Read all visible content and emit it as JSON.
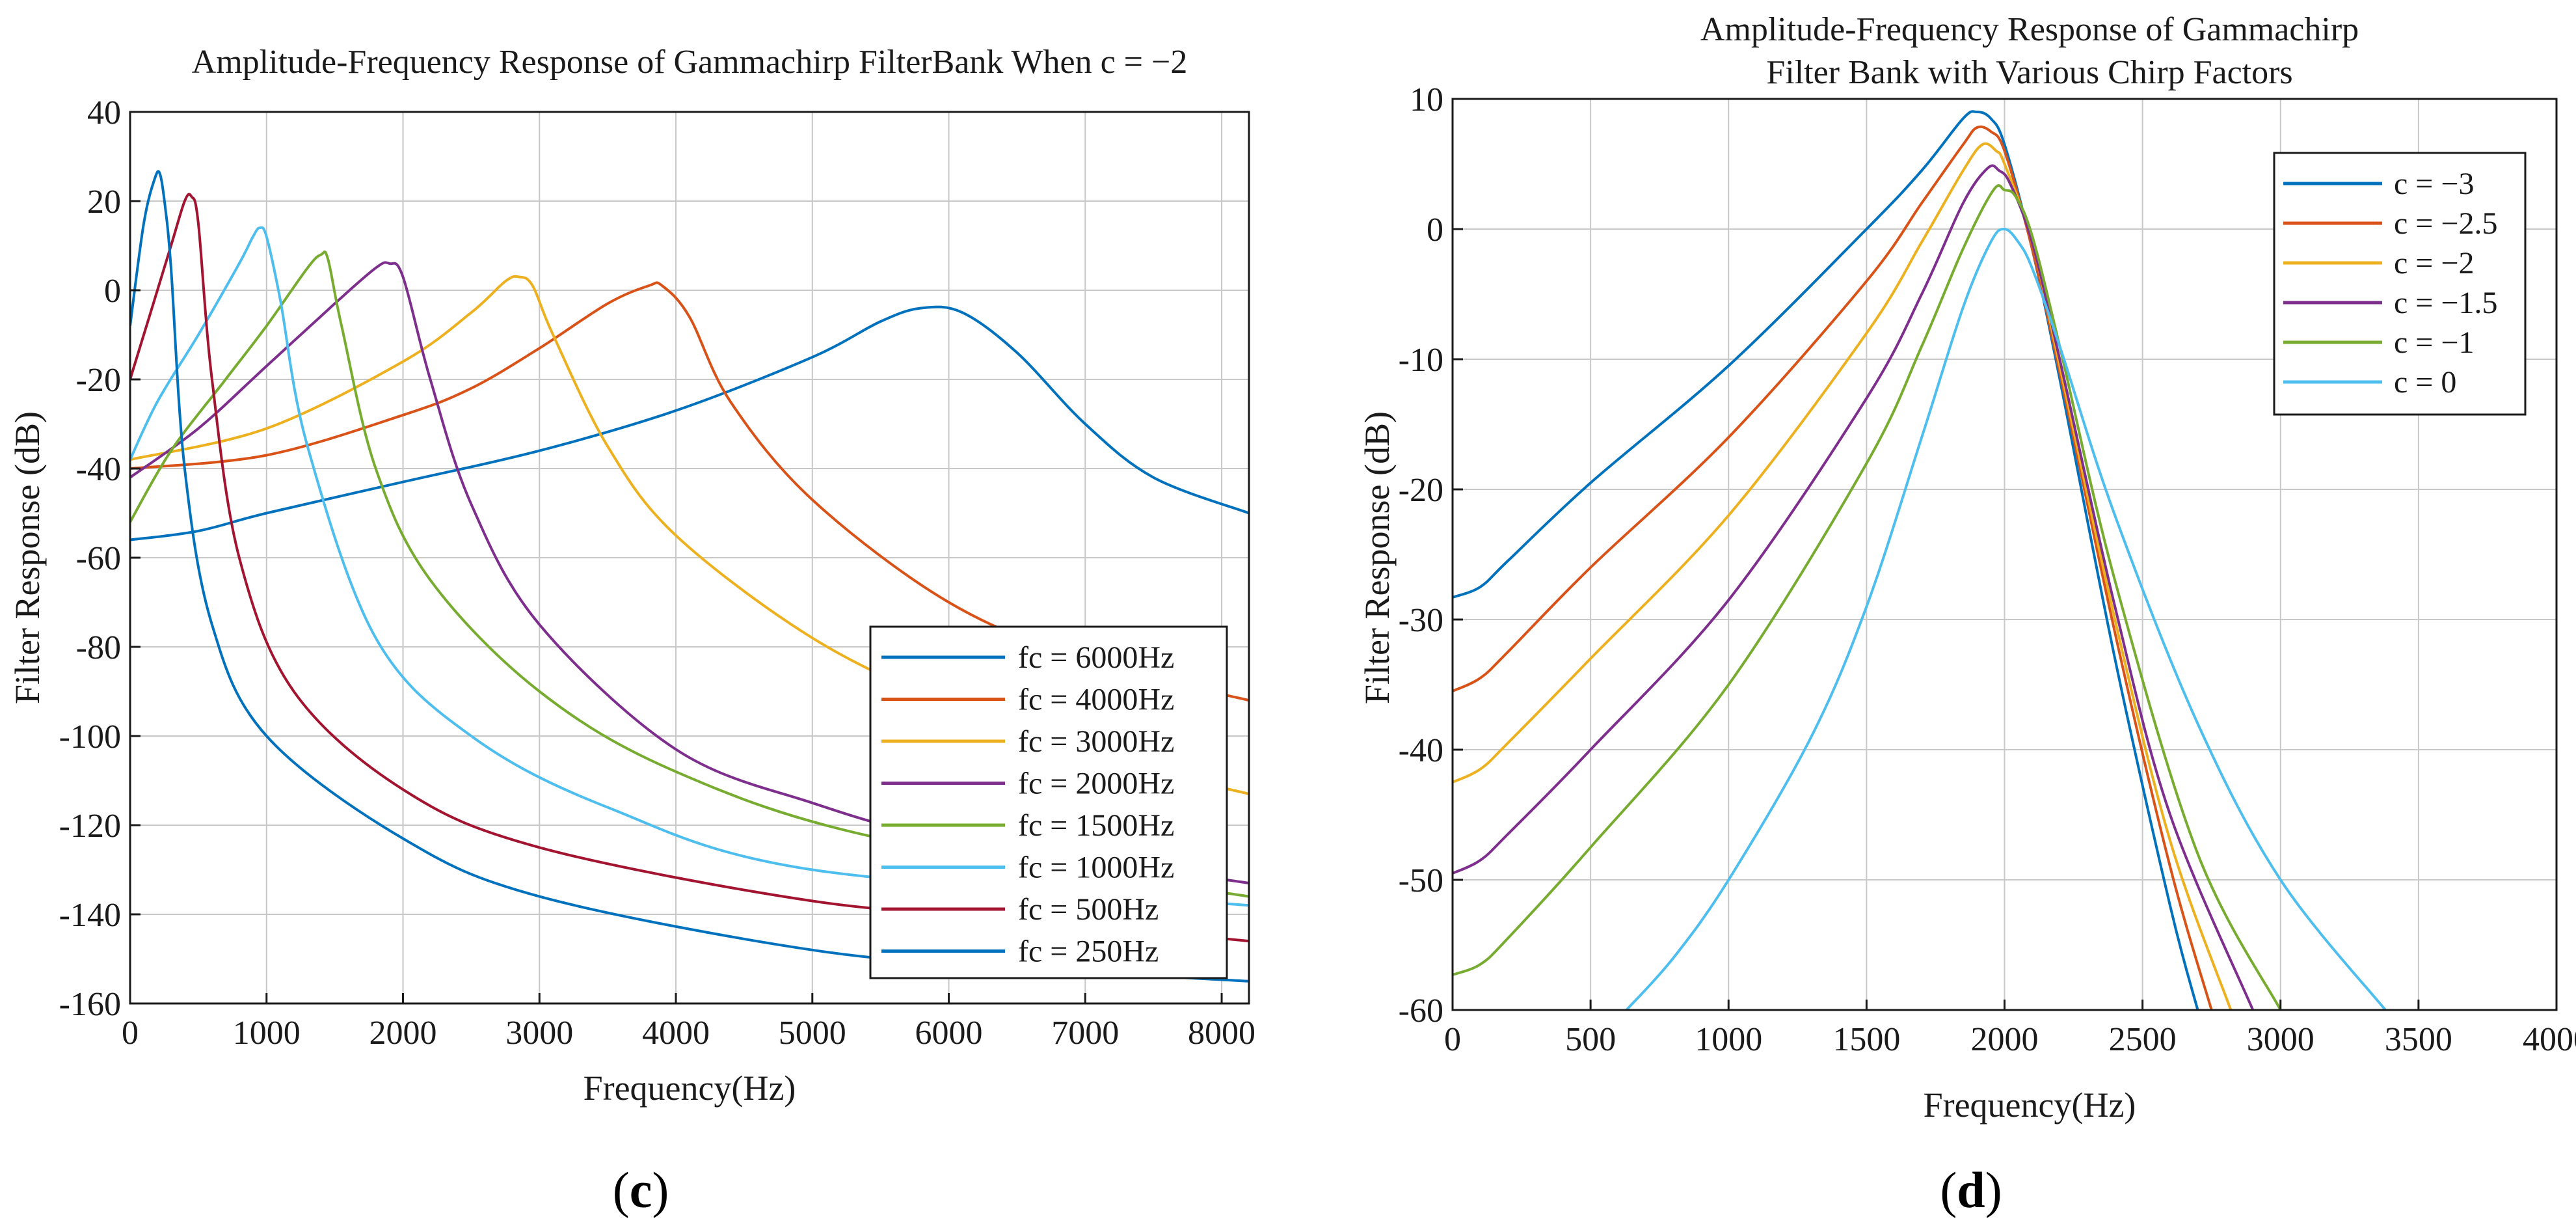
{
  "chart_data": [
    {
      "type": "line",
      "panel_label_open": "(",
      "panel_letter": "c",
      "panel_label_close": ")",
      "title": "Amplitude-Frequency Response of Gammachirp FilterBank When c = −2",
      "xlabel": "Frequency(Hz)",
      "ylabel": "Filter Response (dB)",
      "xlim": [
        0,
        8200
      ],
      "ylim": [
        -160,
        40
      ],
      "xticks": [
        0,
        1000,
        2000,
        3000,
        4000,
        5000,
        6000,
        7000,
        8000
      ],
      "xtick_labels": [
        "0",
        "1000",
        "2000",
        "3000",
        "4000",
        "5000",
        "6000",
        "7000",
        "8000"
      ],
      "yticks": [
        -160,
        -140,
        -120,
        -100,
        -80,
        -60,
        -40,
        -20,
        0,
        20,
        40
      ],
      "ytick_labels": [
        "-160",
        "-140",
        "-120",
        "-100",
        "-80",
        "-60",
        "-40",
        "-20",
        "0",
        "20",
        "40"
      ],
      "grid": true,
      "legend_position": "bottom-right",
      "series": [
        {
          "name": "fc = 6000Hz",
          "color": "#0072BD",
          "x": [
            0,
            500,
            1000,
            2000,
            3000,
            4000,
            5000,
            5500,
            5800,
            6100,
            6500,
            7000,
            7500,
            8200
          ],
          "y": [
            -56,
            -54,
            -50,
            -43,
            -36,
            -27,
            -15,
            -7,
            -4,
            -5,
            -14,
            -30,
            -42,
            -50
          ]
        },
        {
          "name": "fc = 4000Hz",
          "color": "#D95319",
          "x": [
            0,
            1000,
            2000,
            2500,
            3000,
            3500,
            3800,
            3900,
            4100,
            4400,
            5000,
            6000,
            7000,
            8200
          ],
          "y": [
            -40,
            -37,
            -28,
            -22,
            -13,
            -3,
            1,
            1,
            -6,
            -25,
            -47,
            -70,
            -83,
            -92
          ]
        },
        {
          "name": "fc = 3000Hz",
          "color": "#EDB120",
          "x": [
            0,
            1000,
            2000,
            2500,
            2750,
            2850,
            2950,
            3100,
            3500,
            4000,
            5000,
            6000,
            7000,
            8200
          ],
          "y": [
            -38,
            -31,
            -16,
            -5,
            2,
            3,
            1,
            -10,
            -35,
            -55,
            -78,
            -93,
            -104,
            -113
          ]
        },
        {
          "name": "fc = 2000Hz",
          "color": "#7E2F8E",
          "x": [
            0,
            500,
            1000,
            1500,
            1800,
            1900,
            2000,
            2200,
            2500,
            3000,
            4000,
            5000,
            6000,
            8200
          ],
          "y": [
            -42,
            -31,
            -17,
            -3,
            5,
            6,
            3,
            -20,
            -48,
            -75,
            -103,
            -115,
            -123,
            -133
          ]
        },
        {
          "name": "fc = 1500Hz",
          "color": "#77AC30",
          "x": [
            0,
            300,
            700,
            1000,
            1300,
            1400,
            1450,
            1550,
            1800,
            2200,
            3000,
            4000,
            5500,
            8200
          ],
          "y": [
            -52,
            -36,
            -20,
            -8,
            5,
            8,
            7,
            -8,
            -40,
            -65,
            -90,
            -108,
            -123,
            -136
          ]
        },
        {
          "name": "fc = 1000Hz",
          "color": "#4DBEEE",
          "x": [
            0,
            200,
            500,
            800,
            900,
            950,
            1000,
            1100,
            1300,
            1800,
            2500,
            3500,
            5000,
            8200
          ],
          "y": [
            -38,
            -25,
            -10,
            6,
            12,
            14,
            12,
            -2,
            -35,
            -78,
            -100,
            -116,
            -130,
            -138
          ]
        },
        {
          "name": "fc = 500Hz",
          "color": "#A2142F",
          "x": [
            0,
            150,
            300,
            400,
            450,
            500,
            600,
            800,
            1200,
            2000,
            3000,
            5000,
            6500,
            8200
          ],
          "y": [
            -20,
            -5,
            10,
            20,
            21,
            15,
            -20,
            -60,
            -90,
            -112,
            -125,
            -137,
            -141,
            -146
          ]
        },
        {
          "name": "fc = 250Hz",
          "color": "#0072BD",
          "x": [
            0,
            100,
            180,
            220,
            260,
            300,
            400,
            600,
            1000,
            2000,
            3000,
            5000,
            6500,
            8200
          ],
          "y": [
            -8,
            15,
            25,
            26,
            18,
            5,
            -40,
            -75,
            -100,
            -123,
            -136,
            -148,
            -152,
            -155
          ]
        }
      ]
    },
    {
      "type": "line",
      "panel_label_open": "(",
      "panel_letter": "d",
      "panel_label_close": ")",
      "title_lines": [
        "Amplitude-Frequency Response of Gammachirp",
        "Filter Bank with Various Chirp Factors"
      ],
      "xlabel": "Frequency(Hz)",
      "ylabel": "Filter Response (dB)",
      "xlim": [
        0,
        4000
      ],
      "ylim": [
        -60,
        10
      ],
      "xticks": [
        0,
        500,
        1000,
        1500,
        2000,
        2500,
        3000,
        3500,
        4000
      ],
      "xtick_labels": [
        "0",
        "500",
        "1000",
        "1500",
        "2000",
        "2500",
        "3000",
        "3500",
        "4000"
      ],
      "yticks": [
        -60,
        -50,
        -40,
        -30,
        -20,
        -10,
        0,
        10
      ],
      "ytick_labels": [
        "-60",
        "-50",
        "-40",
        "-30",
        "-20",
        "-10",
        "0",
        "10"
      ],
      "grid": true,
      "legend_position": "top-right",
      "series": [
        {
          "name": "c = −3",
          "color": "#0072BD",
          "x": [
            0,
            100,
            200,
            500,
            1000,
            1500,
            1700,
            1850,
            1900,
            1950,
            2000,
            2100,
            2200,
            2400,
            2600,
            2700
          ],
          "y": [
            -28.3,
            -27.5,
            -25.5,
            -19.5,
            -10.5,
            0,
            4.5,
            8.5,
            9,
            8.5,
            6.5,
            -1.5,
            -11.5,
            -33,
            -52,
            -60
          ]
        },
        {
          "name": "c = −2.5",
          "color": "#D95319",
          "x": [
            0,
            100,
            200,
            500,
            1000,
            1500,
            1700,
            1850,
            1900,
            1950,
            2000,
            2100,
            2200,
            2400,
            2600,
            2750
          ],
          "y": [
            -35.5,
            -34.5,
            -32.5,
            -26,
            -16,
            -4,
            2,
            6.5,
            7.8,
            7.5,
            6,
            -1.5,
            -11,
            -31,
            -49,
            -60
          ]
        },
        {
          "name": "c = −2",
          "color": "#EDB120",
          "x": [
            0,
            100,
            200,
            500,
            1000,
            1500,
            1700,
            1850,
            1920,
            1970,
            2000,
            2100,
            2200,
            2400,
            2600,
            2820
          ],
          "y": [
            -42.5,
            -41.5,
            -39.5,
            -33,
            -22,
            -8,
            -1,
            4.5,
            6.5,
            6,
            5,
            -1,
            -10.5,
            -30,
            -47,
            -60
          ]
        },
        {
          "name": "c = −1.5",
          "color": "#7E2F8E",
          "x": [
            0,
            100,
            200,
            500,
            1000,
            1500,
            1700,
            1850,
            1940,
            1980,
            2020,
            2100,
            2200,
            2400,
            2600,
            2900
          ],
          "y": [
            -49.5,
            -48.5,
            -46.5,
            -40,
            -28.5,
            -13,
            -5,
            2,
            4.7,
            4.5,
            3.5,
            -1,
            -10,
            -29,
            -45,
            -60
          ]
        },
        {
          "name": "c = −1",
          "color": "#77AC30",
          "x": [
            0,
            100,
            200,
            500,
            1000,
            1500,
            1700,
            1850,
            1960,
            2000,
            2040,
            2100,
            2200,
            2400,
            2700,
            3000
          ],
          "y": [
            -57.3,
            -56.5,
            -54.5,
            -47.5,
            -35,
            -18,
            -9,
            -1.5,
            3,
            3,
            2.5,
            -0.5,
            -9,
            -27,
            -48,
            -60
          ]
        },
        {
          "name": "c = 0",
          "color": "#4DBEEE",
          "x": [
            630,
            800,
            1000,
            1300,
            1500,
            1700,
            1850,
            1950,
            2000,
            2050,
            2100,
            2200,
            2400,
            2700,
            3000,
            3380
          ],
          "y": [
            -60,
            -56,
            -50,
            -39,
            -29,
            -16,
            -6,
            -1,
            0,
            -1,
            -3,
            -9,
            -22,
            -38,
            -50,
            -60
          ]
        }
      ]
    }
  ]
}
